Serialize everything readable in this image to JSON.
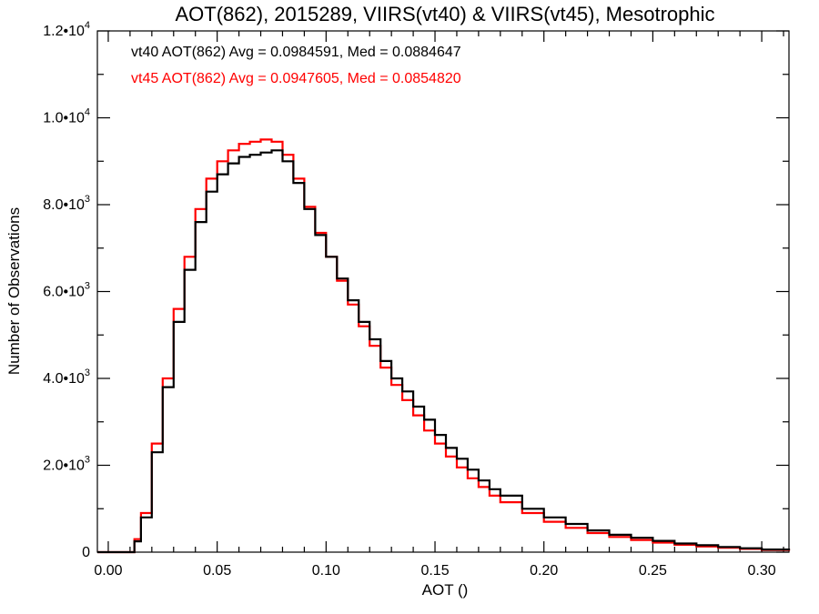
{
  "chart_data": {
    "type": "line",
    "title": "AOT(862), 2015289, VIIRS(vt40) & VIIRS(vt45), Mesotrophic",
    "xlabel": "AOT ()",
    "ylabel": "Number of Observations",
    "xlim": [
      -0.005,
      0.3125
    ],
    "ylim": [
      0,
      12000
    ],
    "x_ticks": [
      {
        "value": 0.0,
        "label": "0.00"
      },
      {
        "value": 0.05,
        "label": "0.05"
      },
      {
        "value": 0.1,
        "label": "0.10"
      },
      {
        "value": 0.15,
        "label": "0.15"
      },
      {
        "value": 0.2,
        "label": "0.20"
      },
      {
        "value": 0.25,
        "label": "0.25"
      },
      {
        "value": 0.3,
        "label": "0.30"
      }
    ],
    "y_ticks": [
      {
        "value": 0,
        "base": "0",
        "exp": ""
      },
      {
        "value": 2000,
        "base": "2.0•10",
        "exp": "3"
      },
      {
        "value": 4000,
        "base": "4.0•10",
        "exp": "3"
      },
      {
        "value": 6000,
        "base": "6.0•10",
        "exp": "3"
      },
      {
        "value": 8000,
        "base": "8.0•10",
        "exp": "3"
      },
      {
        "value": 10000,
        "base": "1.0•10",
        "exp": "4"
      },
      {
        "value": 12000,
        "base": "1.2•10",
        "exp": "4"
      }
    ],
    "legend_position": "top-left",
    "series": [
      {
        "name": "vt40",
        "color": "#000000",
        "legend": "vt40 AOT(862) Avg = 0.0984591, Med = 0.0884647",
        "x": [
          -0.005,
          0.0,
          0.005,
          0.01,
          0.012,
          0.015,
          0.02,
          0.025,
          0.03,
          0.035,
          0.04,
          0.045,
          0.05,
          0.055,
          0.06,
          0.065,
          0.07,
          0.075,
          0.08,
          0.085,
          0.09,
          0.095,
          0.1,
          0.105,
          0.11,
          0.115,
          0.12,
          0.125,
          0.13,
          0.135,
          0.14,
          0.145,
          0.15,
          0.155,
          0.16,
          0.165,
          0.17,
          0.175,
          0.18,
          0.19,
          0.2,
          0.21,
          0.22,
          0.23,
          0.24,
          0.25,
          0.26,
          0.27,
          0.28,
          0.29,
          0.3,
          0.3125
        ],
        "y": [
          0,
          0,
          0,
          0,
          250,
          800,
          2300,
          3800,
          5300,
          6500,
          7600,
          8300,
          8700,
          8950,
          9100,
          9150,
          9200,
          9250,
          9000,
          8500,
          7900,
          7300,
          6800,
          6300,
          5800,
          5300,
          4900,
          4400,
          4000,
          3700,
          3350,
          3050,
          2700,
          2400,
          2150,
          1900,
          1650,
          1450,
          1300,
          1000,
          800,
          650,
          500,
          400,
          330,
          260,
          200,
          160,
          120,
          90,
          60,
          40
        ]
      },
      {
        "name": "vt45",
        "color": "#ff0000",
        "legend": "vt45 AOT(862) Avg = 0.0947605, Med = 0.0854820",
        "x": [
          -0.005,
          0.0,
          0.005,
          0.01,
          0.012,
          0.015,
          0.02,
          0.025,
          0.03,
          0.035,
          0.04,
          0.045,
          0.05,
          0.055,
          0.06,
          0.065,
          0.07,
          0.075,
          0.08,
          0.085,
          0.09,
          0.095,
          0.1,
          0.105,
          0.11,
          0.115,
          0.12,
          0.125,
          0.13,
          0.135,
          0.14,
          0.145,
          0.15,
          0.155,
          0.16,
          0.165,
          0.17,
          0.175,
          0.18,
          0.19,
          0.2,
          0.21,
          0.22,
          0.23,
          0.24,
          0.25,
          0.26,
          0.27,
          0.28,
          0.29,
          0.3,
          0.3125
        ],
        "y": [
          0,
          0,
          0,
          0,
          300,
          900,
          2500,
          4000,
          5600,
          6800,
          7900,
          8600,
          9000,
          9250,
          9400,
          9450,
          9500,
          9450,
          9150,
          8600,
          7950,
          7350,
          6800,
          6250,
          5700,
          5200,
          4750,
          4250,
          3850,
          3500,
          3150,
          2800,
          2500,
          2200,
          1950,
          1700,
          1500,
          1300,
          1150,
          900,
          700,
          560,
          440,
          350,
          280,
          220,
          170,
          130,
          100,
          75,
          50,
          30
        ]
      }
    ]
  }
}
